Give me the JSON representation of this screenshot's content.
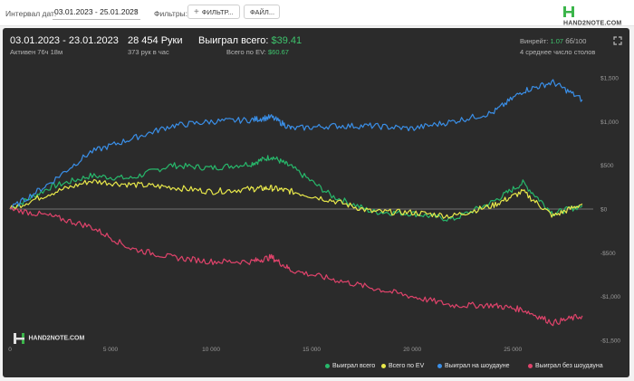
{
  "topbar": {
    "interval_label": "Интервал дат:",
    "interval_value": "03.01.2023 - 25.01.2023",
    "filters_label": "Фильтры:",
    "filter_button": "ФИЛЬТР...",
    "file_button": "ФАЙЛ...",
    "logo_text": "HAND2NOTE.COM"
  },
  "summary": {
    "date_range": "03.01.2023 - 23.01.2023",
    "active": "Активен 76ч 18м",
    "hands": "28 454 Руки",
    "hands_per_hour": "373 рук в час",
    "won_total_label": "Выиграл всего:",
    "won_total_value": "$39.41",
    "ev_label": "Всего по EV:",
    "ev_value": "$60.67",
    "vpip_label": "Винрейт:",
    "vpip_value": "1.07",
    "vpip_unit": "бб/100",
    "tables": "4 среднее число столов"
  },
  "watermark": "HAND2NOTE.COM",
  "chart_data": {
    "type": "line",
    "xlim": [
      0,
      29000
    ],
    "ylim": [
      -1500,
      1500
    ],
    "x_ticks": [
      0,
      5000,
      10000,
      15000,
      20000,
      25000
    ],
    "x_tick_labels": [
      "0",
      "5 000",
      "10 000",
      "15 000",
      "20 000",
      "25 000"
    ],
    "y_ticks": [
      1500,
      1000,
      500,
      0,
      -500,
      -1000,
      -1500
    ],
    "y_tick_labels": [
      "$1,500",
      "$1,000",
      "$500",
      "$0",
      "-$500",
      "-$1,000",
      "-$1,500"
    ],
    "x": [
      0,
      2000,
      4000,
      6000,
      8000,
      10000,
      12000,
      13000,
      14000,
      16000,
      18000,
      20000,
      22000,
      24000,
      25500,
      27000,
      28454
    ],
    "series": [
      {
        "name": "Выиграл всего",
        "color": "#27b86b",
        "values": [
          0,
          250,
          380,
          350,
          500,
          470,
          520,
          600,
          480,
          150,
          -30,
          -50,
          -120,
          80,
          300,
          -50,
          40
        ]
      },
      {
        "name": "Всего по EV",
        "color": "#e8e84a",
        "values": [
          0,
          180,
          320,
          280,
          250,
          200,
          230,
          240,
          200,
          100,
          -30,
          -40,
          -80,
          40,
          200,
          -80,
          60
        ]
      },
      {
        "name": "Выиграл на шоудауне",
        "color": "#3a8fe8",
        "values": [
          0,
          300,
          650,
          800,
          950,
          1000,
          1020,
          1050,
          920,
          950,
          950,
          920,
          1000,
          1100,
          1350,
          1450,
          1250
        ]
      },
      {
        "name": "Выиграл без шоудауна",
        "color": "#e0436b",
        "values": [
          0,
          -80,
          -200,
          -450,
          -550,
          -600,
          -600,
          -550,
          -700,
          -800,
          -900,
          -1000,
          -1100,
          -1100,
          -1150,
          -1300,
          -1220
        ]
      }
    ],
    "grid": false,
    "legend": "bottom-right"
  }
}
